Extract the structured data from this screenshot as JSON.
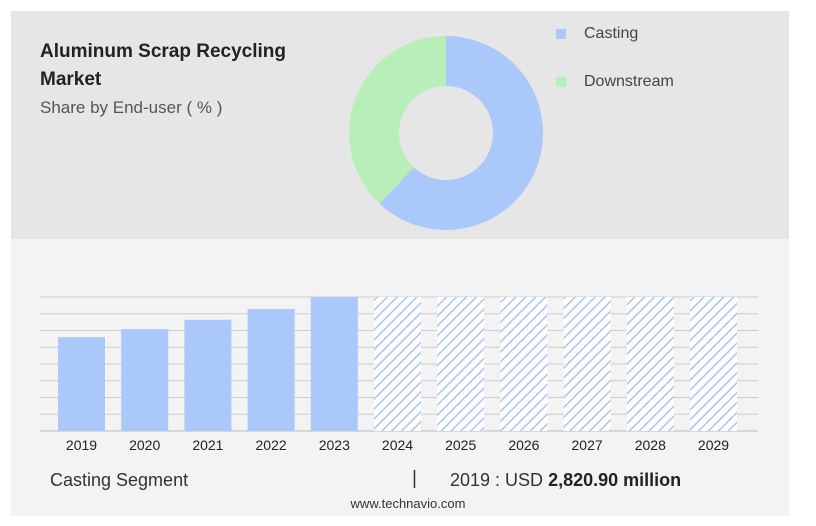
{
  "title": "Aluminum Scrap Recycling Market",
  "subtitle": "Share by End-user ( % )",
  "colors": {
    "casting": "#aac8fa",
    "downstream": "#b8efb8",
    "hatch": "#a9c4ee",
    "grid": "#cccccc",
    "top_panel": "#e6e6e6",
    "bottom_panel": "#f3f3f3"
  },
  "legend": [
    {
      "label": "Casting",
      "color": "#aac8fa"
    },
    {
      "label": "Downstream",
      "color": "#b8efb8"
    }
  ],
  "footer": {
    "segment": "Casting Segment",
    "separator": "|",
    "value_prefix": "2019 : USD",
    "value_bold": "2,820.90 million"
  },
  "source": "www.technavio.com",
  "chart_data": [
    {
      "type": "pie",
      "style": "donut",
      "labels": [
        "Casting",
        "Downstream"
      ],
      "values": [
        62,
        38
      ]
    },
    {
      "type": "bar",
      "categories": [
        "2019",
        "2020",
        "2021",
        "2022",
        "2023",
        "2024",
        "2025",
        "2026",
        "2027",
        "2028",
        "2029"
      ],
      "values": [
        70,
        76,
        83,
        91,
        100,
        100,
        100,
        100,
        100,
        100,
        100
      ],
      "forecast": [
        false,
        false,
        false,
        false,
        false,
        true,
        true,
        true,
        true,
        true,
        true
      ],
      "ylim": [
        0,
        100
      ],
      "grid": true
    }
  ]
}
